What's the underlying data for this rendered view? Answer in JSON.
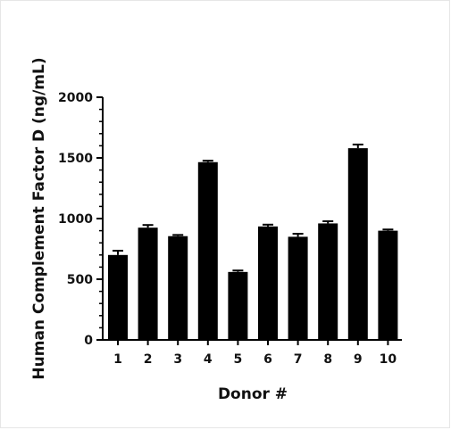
{
  "chart_data": {
    "type": "bar",
    "title": "",
    "xlabel": "Donor #",
    "ylabel": "Human Complement Factor D (ng/mL)",
    "categories": [
      "1",
      "2",
      "3",
      "4",
      "5",
      "6",
      "7",
      "8",
      "9",
      "10"
    ],
    "values": [
      700,
      925,
      855,
      1465,
      560,
      935,
      850,
      960,
      1580,
      900
    ],
    "errors": [
      35,
      22,
      10,
      12,
      12,
      15,
      25,
      18,
      30,
      10
    ],
    "ylim": [
      0,
      2000
    ],
    "yticks": [
      "0",
      "500",
      "1000",
      "1500",
      "2000"
    ],
    "ytick_values": [
      0,
      500,
      1000,
      1500,
      2000
    ],
    "grid": false,
    "bar_color": "#000000"
  }
}
